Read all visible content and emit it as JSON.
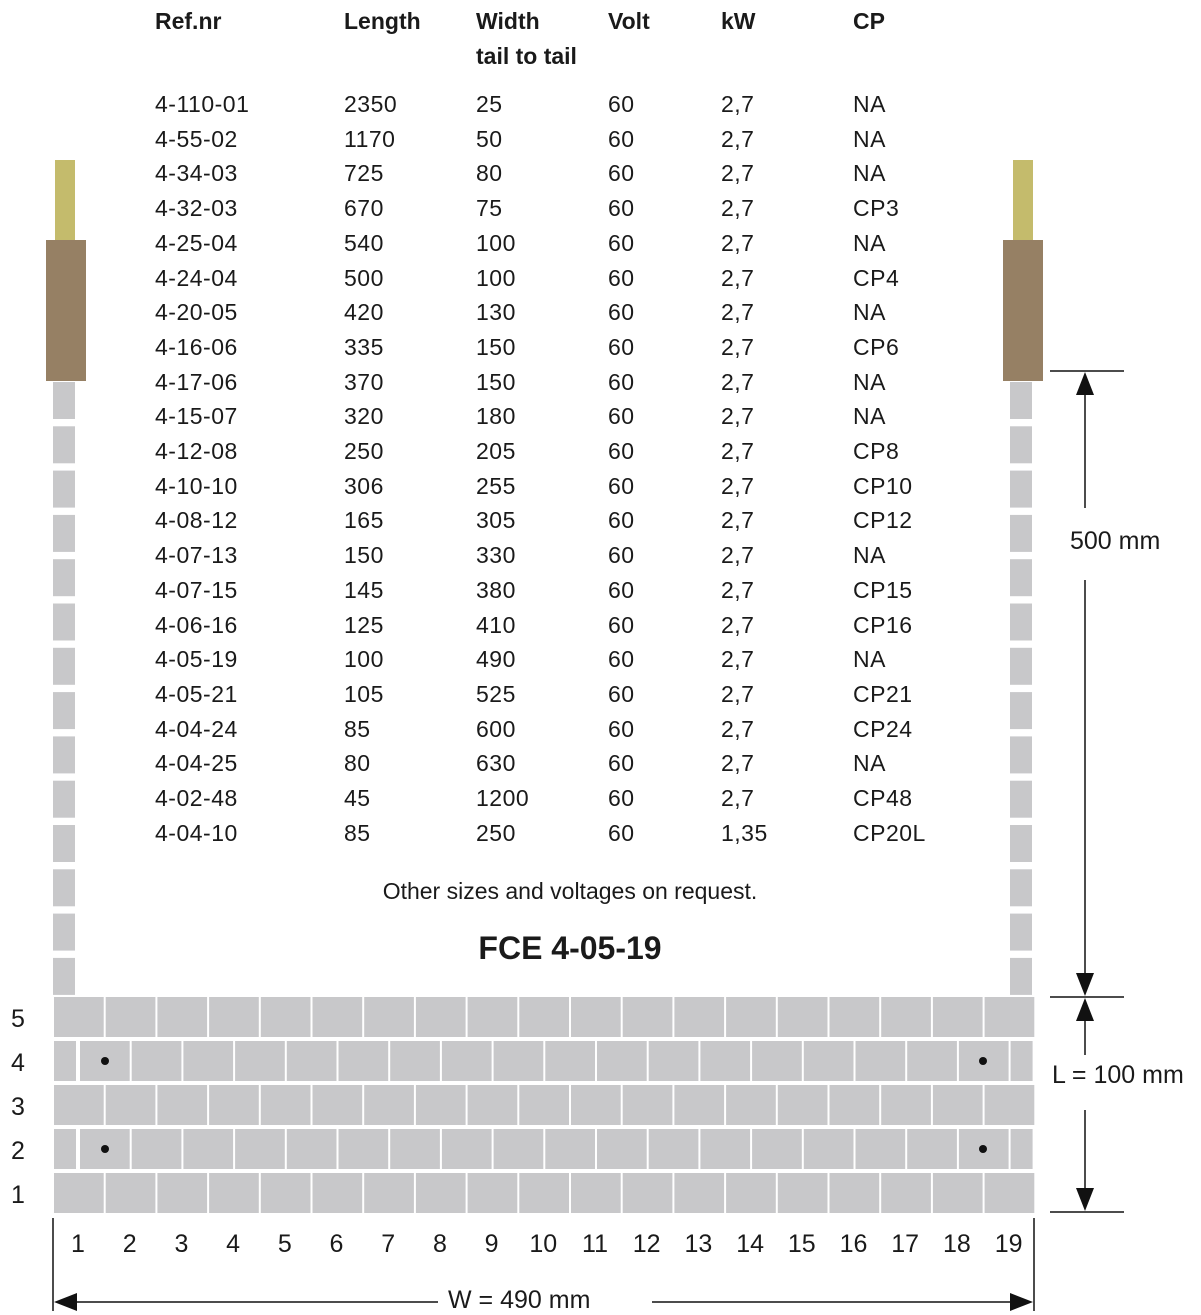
{
  "table": {
    "headers": {
      "ref": "Ref.nr",
      "length": "Length",
      "width": "Width",
      "width_sub": "tail to tail",
      "volt": "Volt",
      "kw": "kW",
      "cp": "CP"
    },
    "rows": [
      {
        "ref": "4-110-01",
        "length": "2350",
        "width": "25",
        "volt": "60",
        "kw": "2,7",
        "cp": "NA"
      },
      {
        "ref": "4-55-02",
        "length": "1170",
        "width": "50",
        "volt": "60",
        "kw": "2,7",
        "cp": "NA"
      },
      {
        "ref": "4-34-03",
        "length": "725",
        "width": "80",
        "volt": "60",
        "kw": "2,7",
        "cp": "NA"
      },
      {
        "ref": "4-32-03",
        "length": "670",
        "width": "75",
        "volt": "60",
        "kw": "2,7",
        "cp": "CP3"
      },
      {
        "ref": "4-25-04",
        "length": "540",
        "width": "100",
        "volt": "60",
        "kw": "2,7",
        "cp": "NA"
      },
      {
        "ref": "4-24-04",
        "length": "500",
        "width": "100",
        "volt": "60",
        "kw": "2,7",
        "cp": "CP4"
      },
      {
        "ref": "4-20-05",
        "length": "420",
        "width": "130",
        "volt": "60",
        "kw": "2,7",
        "cp": "NA"
      },
      {
        "ref": "4-16-06",
        "length": "335",
        "width": "150",
        "volt": "60",
        "kw": "2,7",
        "cp": "CP6"
      },
      {
        "ref": "4-17-06",
        "length": "370",
        "width": "150",
        "volt": "60",
        "kw": "2,7",
        "cp": "NA"
      },
      {
        "ref": "4-15-07",
        "length": "320",
        "width": "180",
        "volt": "60",
        "kw": "2,7",
        "cp": "NA"
      },
      {
        "ref": "4-12-08",
        "length": "250",
        "width": "205",
        "volt": "60",
        "kw": "2,7",
        "cp": "CP8"
      },
      {
        "ref": "4-10-10",
        "length": "306",
        "width": "255",
        "volt": "60",
        "kw": "2,7",
        "cp": "CP10"
      },
      {
        "ref": "4-08-12",
        "length": "165",
        "width": "305",
        "volt": "60",
        "kw": "2,7",
        "cp": "CP12"
      },
      {
        "ref": "4-07-13",
        "length": "150",
        "width": "330",
        "volt": "60",
        "kw": "2,7",
        "cp": "NA"
      },
      {
        "ref": "4-07-15",
        "length": "145",
        "width": "380",
        "volt": "60",
        "kw": "2,7",
        "cp": "CP15"
      },
      {
        "ref": "4-06-16",
        "length": "125",
        "width": "410",
        "volt": "60",
        "kw": "2,7",
        "cp": "CP16"
      },
      {
        "ref": "4-05-19",
        "length": "100",
        "width": "490",
        "volt": "60",
        "kw": "2,7",
        "cp": "NA"
      },
      {
        "ref": "4-05-21",
        "length": "105",
        "width": "525",
        "volt": "60",
        "kw": "2,7",
        "cp": "CP21"
      },
      {
        "ref": "4-04-24",
        "length": "85",
        "width": "600",
        "volt": "60",
        "kw": "2,7",
        "cp": "CP24"
      },
      {
        "ref": "4-04-25",
        "length": "80",
        "width": "630",
        "volt": "60",
        "kw": "2,7",
        "cp": "NA"
      },
      {
        "ref": "4-02-48",
        "length": "45",
        "width": "1200",
        "volt": "60",
        "kw": "2,7",
        "cp": "CP48"
      },
      {
        "ref": "4-04-10",
        "length": "85",
        "width": "250",
        "volt": "60",
        "kw": "1,35",
        "cp": "CP20L"
      }
    ]
  },
  "note": "Other sizes and voltages on request.",
  "model": "FCE 4-05-19",
  "dimensions": {
    "lead_length": "500 mm",
    "L": "L = 100 mm",
    "W": "W = 490 mm"
  },
  "grid": {
    "row_labels": [
      "5",
      "4",
      "3",
      "2",
      "1"
    ],
    "column_labels": [
      "1",
      "2",
      "3",
      "4",
      "5",
      "6",
      "7",
      "8",
      "9",
      "10",
      "11",
      "12",
      "13",
      "14",
      "15",
      "16",
      "17",
      "18",
      "19"
    ]
  },
  "colors": {
    "ceramic": "#c8c8ca",
    "cold_tail": "#968064",
    "lead": "#c4bb6c",
    "line": "#111111"
  }
}
